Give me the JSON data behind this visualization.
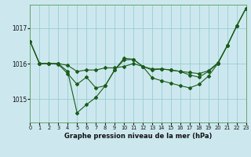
{
  "title": "Graphe pression niveau de la mer (hPa)",
  "background_color": "#cce8ee",
  "grid_color": "#99ccd6",
  "line_color": "#1a5c1a",
  "xlim": [
    0,
    23
  ],
  "ylim": [
    1014.35,
    1017.65
  ],
  "yticks": [
    1015,
    1016,
    1017
  ],
  "xticks": [
    0,
    1,
    2,
    3,
    4,
    5,
    6,
    7,
    8,
    9,
    10,
    11,
    12,
    13,
    14,
    15,
    16,
    17,
    18,
    19,
    20,
    21,
    22,
    23
  ],
  "series": [
    [
      1016.62,
      1016.0,
      1016.0,
      1016.0,
      1015.95,
      1015.78,
      1015.82,
      1015.82,
      1015.88,
      1015.88,
      1015.92,
      1016.0,
      1015.92,
      1015.85,
      1015.85,
      1015.82,
      1015.78,
      1015.75,
      1015.72,
      1015.8,
      1016.02,
      1016.5,
      1017.05,
      1017.55
    ],
    [
      1016.62,
      1016.0,
      1016.0,
      1016.0,
      1015.78,
      1014.62,
      1014.85,
      1015.05,
      1015.38,
      1015.82,
      1016.1,
      1016.12,
      1015.92,
      1015.6,
      1015.52,
      1015.45,
      1015.38,
      1015.32,
      1015.42,
      1015.65,
      1016.0,
      1016.5,
      1017.05,
      1017.55
    ],
    [
      1016.62,
      1016.0,
      1016.0,
      1015.98,
      1015.72,
      1015.42,
      1015.62,
      1015.32,
      1015.38,
      1015.82,
      1016.15,
      1016.12,
      1015.92,
      1015.82,
      1015.85,
      1015.82,
      1015.78,
      1015.68,
      1015.62,
      1015.78,
      1016.0,
      1016.5,
      1017.05,
      1017.55
    ]
  ]
}
